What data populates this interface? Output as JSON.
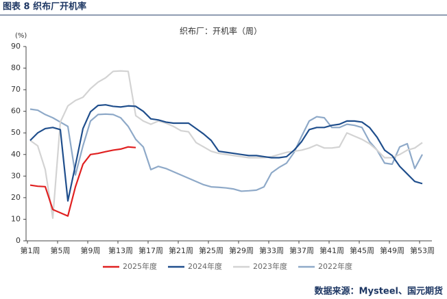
{
  "header": "图表 8  织布厂开机率",
  "source": "数据来源：Mysteel、国元期货",
  "chart_data": {
    "type": "line",
    "title": "织布厂：开机率（周）",
    "y_unit": "(%)",
    "categories": [
      "第1周",
      null,
      null,
      null,
      "第5周",
      null,
      null,
      null,
      "第9周",
      null,
      null,
      null,
      "第13周",
      null,
      null,
      null,
      "第17周",
      null,
      null,
      null,
      "第21周",
      null,
      null,
      null,
      "第25周",
      null,
      null,
      null,
      "第29周",
      null,
      null,
      null,
      "第33周",
      null,
      null,
      null,
      "第37周",
      null,
      null,
      null,
      "第41周",
      null,
      null,
      null,
      "第45周",
      null,
      null,
      null,
      "第49周",
      null,
      null,
      null,
      "第53周"
    ],
    "ylim": [
      0,
      90
    ],
    "yticks": [
      0,
      10,
      20,
      30,
      40,
      50,
      60,
      70,
      80,
      90
    ],
    "grid": false,
    "legend": "bottom",
    "series": [
      {
        "name": "2025年度",
        "color": "#e02020",
        "values": [
          25.8,
          25.3,
          25.1,
          14.5,
          13,
          11.5,
          25,
          35.5,
          40,
          40.5,
          41.3,
          42,
          42.5,
          43.5,
          43.2,
          null,
          null,
          null,
          null,
          null,
          null,
          null,
          null,
          null,
          null,
          null,
          null,
          null,
          null,
          null,
          null,
          null,
          null,
          null,
          null,
          null,
          null,
          null,
          null,
          null,
          null,
          null,
          null,
          null,
          null,
          null,
          null,
          null,
          null,
          null,
          null,
          null,
          null
        ]
      },
      {
        "name": "2024年度",
        "color": "#1f4e8c",
        "values": [
          46.5,
          50,
          52,
          52.5,
          51.5,
          18.5,
          35,
          52,
          59.8,
          62.7,
          63,
          62.3,
          62,
          62.5,
          62.3,
          60,
          56.5,
          56,
          55,
          54.5,
          54.5,
          54.5,
          52,
          49.5,
          46.5,
          41.5,
          41,
          40.5,
          40,
          39.5,
          39.5,
          39,
          38.5,
          38.5,
          39,
          42,
          46,
          51.5,
          52.5,
          52.5,
          53.5,
          54,
          55.5,
          55.5,
          55,
          52.5,
          48,
          42,
          39.5,
          34.5,
          31,
          27.5,
          26.5
        ]
      },
      {
        "name": "2023年度",
        "color": "#d3d3d3",
        "values": [
          46.5,
          44,
          33,
          10.5,
          55,
          62.5,
          65,
          66.5,
          70.5,
          73.5,
          75.5,
          78.5,
          78.7,
          78.5,
          58,
          55.5,
          54,
          55.5,
          54.5,
          53,
          51,
          50.5,
          45.5,
          43.5,
          41.5,
          40.5,
          40,
          39.5,
          39,
          38.5,
          38.5,
          38.5,
          39,
          40,
          41,
          41.5,
          42,
          43,
          44.5,
          43,
          43,
          43.5,
          50,
          48.5,
          47,
          45,
          42,
          38.5,
          38.5,
          40,
          42,
          43,
          45.5
        ]
      },
      {
        "name": "2022年度",
        "color": "#8ea9c8",
        "values": [
          61,
          60.5,
          58.5,
          57,
          55,
          53,
          30.5,
          44,
          55.5,
          58.5,
          58.7,
          58.5,
          57,
          53,
          47,
          43.5,
          33,
          34.5,
          33.5,
          32,
          30.5,
          29,
          27.5,
          26,
          25,
          24.8,
          24.5,
          24,
          23,
          23.2,
          23.5,
          25,
          31.5,
          34,
          36,
          41,
          48.5,
          55.5,
          57.5,
          57,
          52.5,
          52.5,
          54,
          53.5,
          52.5,
          46,
          42,
          36,
          35.5,
          43.5,
          45,
          33.5,
          40
        ]
      }
    ]
  }
}
